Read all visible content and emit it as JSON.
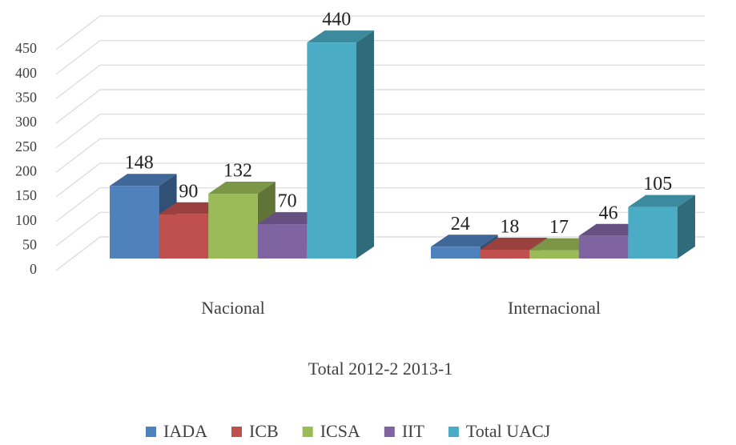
{
  "chart_data": {
    "type": "bar3d",
    "x_label": "Total 2012-2 2013-1",
    "categories": [
      "Nacional",
      "Internacional"
    ],
    "series": [
      {
        "name": "IADA",
        "color": "#4f81bd",
        "values": [
          148,
          24
        ]
      },
      {
        "name": "ICB",
        "color": "#c0504d",
        "values": [
          90,
          18
        ]
      },
      {
        "name": "ICSA",
        "color": "#9bbb59",
        "values": [
          132,
          17
        ]
      },
      {
        "name": "IIT",
        "color": "#8064a2",
        "values": [
          70,
          46
        ]
      },
      {
        "name": "Total UACJ",
        "color": "#4bacc6",
        "values": [
          440,
          105
        ]
      }
    ],
    "ylim": [
      0,
      450
    ],
    "yticks": [
      0,
      50,
      100,
      150,
      200,
      250,
      300,
      350,
      400,
      450
    ],
    "grid": true,
    "legend": "bottom"
  }
}
